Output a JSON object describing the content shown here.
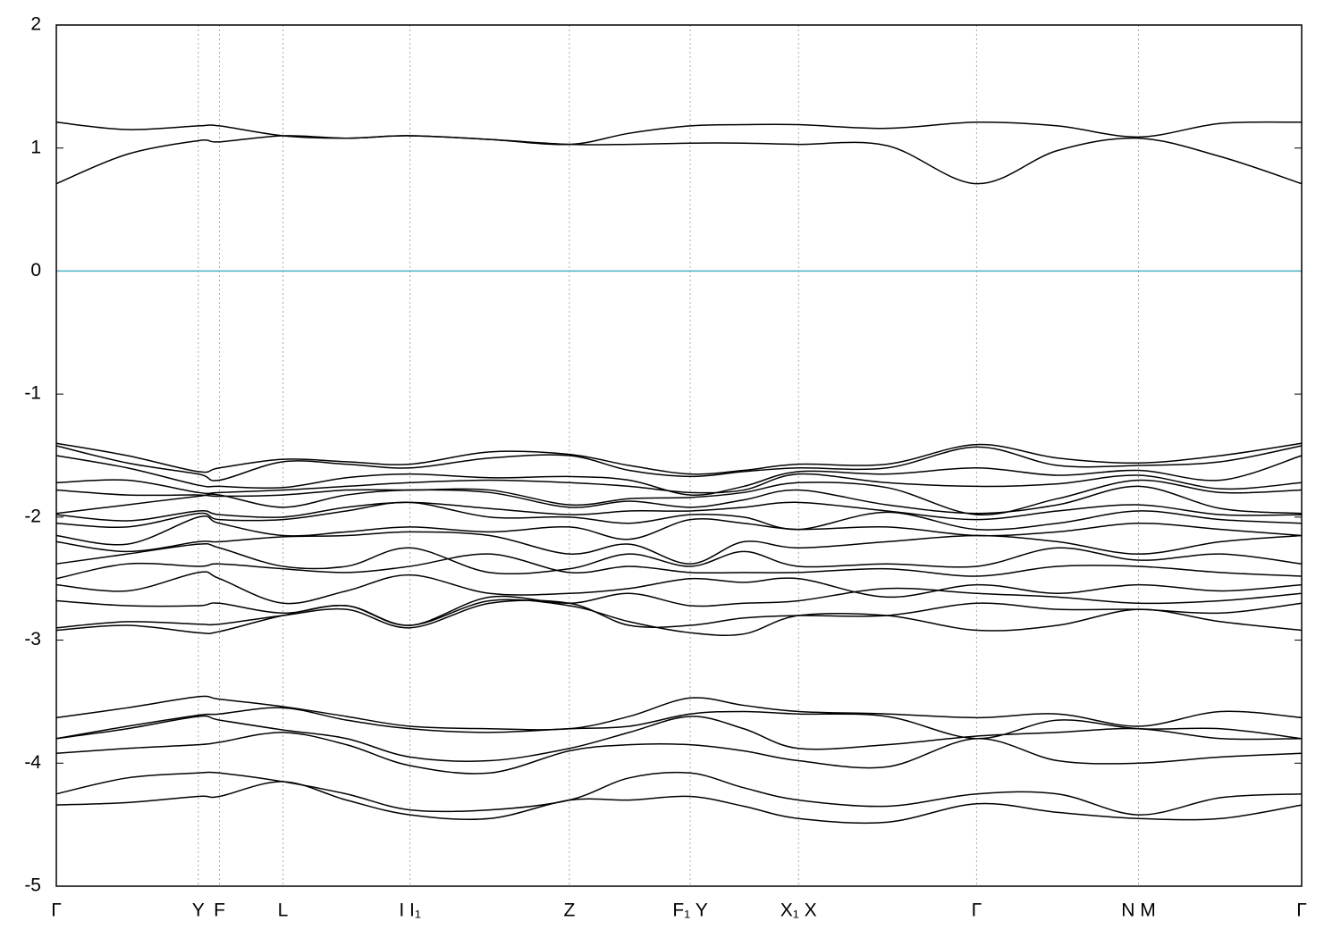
{
  "chart_data": {
    "type": "line",
    "xlim": [
      0,
      1
    ],
    "ylim": [
      -5,
      2
    ],
    "yticks": [
      2,
      1,
      0,
      -1,
      -2,
      -3,
      -4,
      -5
    ],
    "xticks": [
      {
        "value": 0,
        "label": "Γ"
      },
      {
        "value": 0.114,
        "label": "Y"
      },
      {
        "value": 0.131,
        "label": "F"
      },
      {
        "value": 0.182,
        "label": "L"
      },
      {
        "value": 0.284,
        "label": "I I₁"
      },
      {
        "value": 0.412,
        "label": "Z"
      },
      {
        "value": 0.509,
        "label": "F₁ Y"
      },
      {
        "value": 0.596,
        "label": "X₁ X"
      },
      {
        "value": 0.739,
        "label": "Γ"
      },
      {
        "value": 0.869,
        "label": "N M"
      },
      {
        "value": 1,
        "label": "Γ"
      }
    ],
    "grid": true,
    "fermi_level": 0,
    "fermi_color": "#4bb0c8",
    "color": "#000000",
    "x": [
      0,
      0.057,
      0.114,
      0.131,
      0.182,
      0.233,
      0.284,
      0.348,
      0.412,
      0.46,
      0.509,
      0.552,
      0.596,
      0.667,
      0.739,
      0.804,
      0.869,
      0.935,
      1
    ],
    "series": [
      {
        "values": [
          1.21,
          1.15,
          1.18,
          1.18,
          1.1,
          1.08,
          1.1,
          1.07,
          1.03,
          1.12,
          1.18,
          1.19,
          1.19,
          1.16,
          1.21,
          1.18,
          1.09,
          1.2,
          1.21
        ]
      },
      {
        "values": [
          0.71,
          0.95,
          1.06,
          1.05,
          1.1,
          1.08,
          1.1,
          1.07,
          1.03,
          1.03,
          1.04,
          1.04,
          1.03,
          1.02,
          0.71,
          0.98,
          1.08,
          0.93,
          0.71
        ]
      },
      {
        "values": [
          -1.4,
          -1.5,
          -1.63,
          -1.6,
          -1.53,
          -1.55,
          -1.57,
          -1.47,
          -1.49,
          -1.58,
          -1.65,
          -1.62,
          -1.57,
          -1.57,
          -1.41,
          -1.52,
          -1.56,
          -1.5,
          -1.4
        ]
      },
      {
        "values": [
          -1.42,
          -1.56,
          -1.65,
          -1.7,
          -1.55,
          -1.57,
          -1.6,
          -1.52,
          -1.5,
          -1.62,
          -1.67,
          -1.63,
          -1.6,
          -1.6,
          -1.43,
          -1.58,
          -1.58,
          -1.55,
          -1.42
        ]
      },
      {
        "values": [
          -1.5,
          -1.6,
          -1.74,
          -1.75,
          -1.76,
          -1.68,
          -1.65,
          -1.68,
          -1.67,
          -1.7,
          -1.82,
          -1.75,
          -1.63,
          -1.65,
          -1.6,
          -1.66,
          -1.62,
          -1.7,
          -1.5
        ]
      },
      {
        "values": [
          -1.72,
          -1.7,
          -1.8,
          -1.8,
          -1.78,
          -1.75,
          -1.72,
          -1.7,
          -1.72,
          -1.75,
          -1.8,
          -1.78,
          -1.65,
          -1.72,
          -1.75,
          -1.73,
          -1.66,
          -1.77,
          -1.72
        ]
      },
      {
        "values": [
          -1.78,
          -1.82,
          -1.82,
          -1.83,
          -1.82,
          -1.78,
          -1.78,
          -1.78,
          -1.9,
          -1.85,
          -1.84,
          -1.8,
          -1.72,
          -1.76,
          -1.98,
          -1.85,
          -1.7,
          -1.8,
          -1.78
        ]
      },
      {
        "values": [
          -1.97,
          -1.9,
          -1.83,
          -1.82,
          -1.92,
          -1.82,
          -1.78,
          -1.8,
          -1.92,
          -1.87,
          -1.92,
          -1.86,
          -1.78,
          -1.9,
          -1.97,
          -1.9,
          -1.75,
          -1.93,
          -1.97
        ]
      },
      {
        "values": [
          -1.98,
          -2.03,
          -1.95,
          -1.98,
          -2.0,
          -1.92,
          -1.88,
          -1.93,
          -1.98,
          -1.95,
          -1.95,
          -1.92,
          -1.88,
          -1.95,
          -2.02,
          -1.95,
          -1.9,
          -1.98,
          -1.98
        ]
      },
      {
        "values": [
          -2.05,
          -2.08,
          -1.97,
          -2.02,
          -2.02,
          -1.95,
          -1.88,
          -2.0,
          -2.0,
          -2.05,
          -1.98,
          -2.0,
          -2.1,
          -1.96,
          -2.1,
          -2.05,
          -1.95,
          -2.02,
          -2.05
        ]
      },
      {
        "values": [
          -2.15,
          -2.22,
          -2.0,
          -2.05,
          -2.15,
          -2.12,
          -2.08,
          -2.12,
          -2.08,
          -2.18,
          -2.02,
          -2.05,
          -2.1,
          -2.08,
          -2.15,
          -2.12,
          -2.05,
          -2.1,
          -2.15
        ]
      },
      {
        "values": [
          -2.2,
          -2.28,
          -2.2,
          -2.2,
          -2.16,
          -2.15,
          -2.12,
          -2.15,
          -2.3,
          -2.22,
          -2.38,
          -2.2,
          -2.25,
          -2.2,
          -2.15,
          -2.2,
          -2.3,
          -2.2,
          -2.15
        ]
      },
      {
        "values": [
          -2.38,
          -2.3,
          -2.22,
          -2.25,
          -2.4,
          -2.4,
          -2.25,
          -2.45,
          -2.42,
          -2.3,
          -2.4,
          -2.28,
          -2.4,
          -2.38,
          -2.4,
          -2.25,
          -2.35,
          -2.3,
          -2.38
        ]
      },
      {
        "values": [
          -2.5,
          -2.38,
          -2.4,
          -2.38,
          -2.42,
          -2.45,
          -2.4,
          -2.3,
          -2.45,
          -2.4,
          -2.45,
          -2.45,
          -2.45,
          -2.42,
          -2.48,
          -2.4,
          -2.4,
          -2.45,
          -2.48
        ]
      },
      {
        "values": [
          -2.55,
          -2.6,
          -2.45,
          -2.5,
          -2.7,
          -2.6,
          -2.47,
          -2.62,
          -2.62,
          -2.58,
          -2.5,
          -2.53,
          -2.5,
          -2.65,
          -2.55,
          -2.62,
          -2.55,
          -2.6,
          -2.55
        ]
      },
      {
        "values": [
          -2.68,
          -2.72,
          -2.72,
          -2.7,
          -2.78,
          -2.72,
          -2.88,
          -2.65,
          -2.7,
          -2.62,
          -2.72,
          -2.7,
          -2.68,
          -2.58,
          -2.62,
          -2.65,
          -2.7,
          -2.68,
          -2.62
        ]
      },
      {
        "values": [
          -2.9,
          -2.85,
          -2.87,
          -2.87,
          -2.8,
          -2.75,
          -2.9,
          -2.7,
          -2.7,
          -2.88,
          -2.88,
          -2.82,
          -2.8,
          -2.8,
          -2.7,
          -2.75,
          -2.75,
          -2.78,
          -2.7
        ]
      },
      {
        "values": [
          -2.92,
          -2.88,
          -2.94,
          -2.93,
          -2.8,
          -2.72,
          -2.88,
          -2.68,
          -2.72,
          -2.85,
          -2.94,
          -2.95,
          -2.8,
          -2.8,
          -2.92,
          -2.88,
          -2.75,
          -2.85,
          -2.92
        ]
      },
      {
        "values": [
          -3.63,
          -3.55,
          -3.46,
          -3.48,
          -3.54,
          -3.62,
          -3.7,
          -3.72,
          -3.72,
          -3.62,
          -3.47,
          -3.53,
          -3.58,
          -3.6,
          -3.63,
          -3.6,
          -3.7,
          -3.58,
          -3.63
        ]
      },
      {
        "values": [
          -3.8,
          -3.7,
          -3.61,
          -3.6,
          -3.55,
          -3.65,
          -3.72,
          -3.75,
          -3.72,
          -3.7,
          -3.6,
          -3.58,
          -3.6,
          -3.62,
          -3.8,
          -3.65,
          -3.72,
          -3.72,
          -3.8
        ]
      },
      {
        "values": [
          -3.8,
          -3.72,
          -3.62,
          -3.65,
          -3.73,
          -3.8,
          -3.95,
          -3.98,
          -3.88,
          -3.75,
          -3.62,
          -3.72,
          -3.88,
          -3.85,
          -3.78,
          -3.75,
          -3.72,
          -3.8,
          -3.8
        ]
      },
      {
        "values": [
          -3.92,
          -3.88,
          -3.85,
          -3.83,
          -3.75,
          -3.85,
          -4.02,
          -4.08,
          -3.9,
          -3.85,
          -3.85,
          -3.9,
          -3.98,
          -4.03,
          -3.8,
          -3.98,
          -4.0,
          -3.95,
          -3.92
        ]
      },
      {
        "values": [
          -4.25,
          -4.12,
          -4.08,
          -4.08,
          -4.15,
          -4.25,
          -4.38,
          -4.38,
          -4.3,
          -4.12,
          -4.08,
          -4.2,
          -4.3,
          -4.35,
          -4.25,
          -4.25,
          -4.42,
          -4.28,
          -4.25
        ]
      },
      {
        "values": [
          -4.34,
          -4.32,
          -4.27,
          -4.27,
          -4.15,
          -4.3,
          -4.42,
          -4.45,
          -4.3,
          -4.3,
          -4.27,
          -4.35,
          -4.45,
          -4.48,
          -4.33,
          -4.4,
          -4.45,
          -4.45,
          -4.34
        ]
      }
    ]
  }
}
